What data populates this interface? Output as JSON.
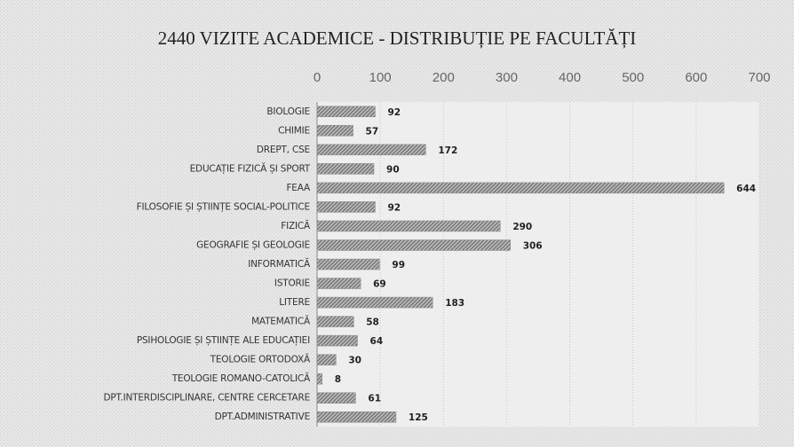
{
  "chart_data": {
    "type": "bar",
    "orientation": "horizontal",
    "title": "2440 VIZITE ACADEMICE - DISTRIBUȚIE PE FACULTĂȚI",
    "categories": [
      "BIOLOGIE",
      "CHIMIE",
      "DREPT, CSE",
      "EDUCAȚIE FIZICĂ ȘI SPORT",
      "FEAA",
      "FILOSOFIE ȘI ȘTIINȚE SOCIAL-POLITICE",
      "FIZICĂ",
      "GEOGRAFIE ȘI GEOLOGIE",
      "INFORMATICĂ",
      "ISTORIE",
      "LITERE",
      "MATEMATICĂ",
      "PSIHOLOGIE ȘI ȘTIINȚE ALE EDUCAȚIEI",
      "TEOLOGIE ORTODOXĂ",
      "TEOLOGIE ROMANO-CATOLICĂ",
      "DPT.INTERDISCIPLINARE, CENTRE CERCETARE",
      "DPT.ADMINISTRATIVE"
    ],
    "values": [
      92,
      57,
      172,
      90,
      644,
      92,
      290,
      306,
      99,
      69,
      183,
      58,
      64,
      30,
      8,
      61,
      125
    ],
    "color": "#8c8c8c",
    "xlim": [
      0,
      700
    ],
    "xticks": [
      0,
      100,
      200,
      300,
      400,
      500,
      600,
      700
    ],
    "grid": true
  }
}
